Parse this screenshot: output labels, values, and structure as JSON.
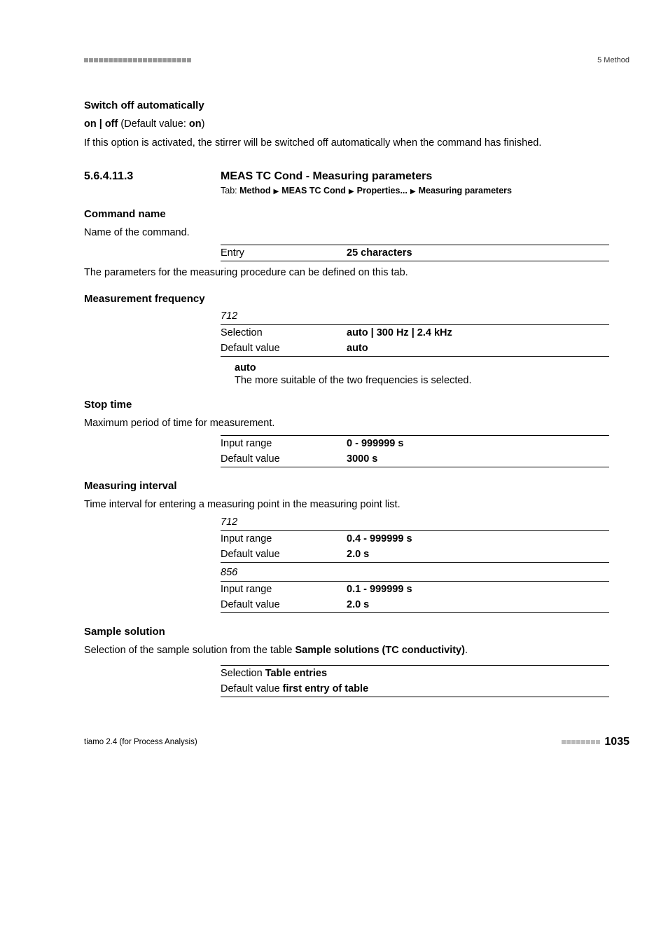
{
  "header": {
    "chapter": "5 Method"
  },
  "blocks": [
    {
      "type": "param-label",
      "text": "Switch off automatically"
    },
    {
      "type": "indent-body",
      "html": "<b>on | off</b> (Default value: <b>on</b>)"
    },
    {
      "type": "indent-body",
      "text": "If this option is activated, the stirrer will be switched off automatically when the command has finished."
    },
    {
      "type": "section",
      "num": "5.6.4.11.3",
      "title": "MEAS TC Cond - Measuring parameters"
    },
    {
      "type": "tab-path",
      "label": "Tab:",
      "crumbs": [
        "Method",
        "MEAS TC Cond",
        "Properties...",
        "Measuring parameters"
      ]
    },
    {
      "type": "param-label",
      "text": "Command name"
    },
    {
      "type": "indent-body",
      "text": "Name of the command."
    },
    {
      "type": "kv-table",
      "rows": [
        {
          "k": "Entry",
          "v": "25 characters",
          "ruleTop": true,
          "ruleBot": true
        }
      ]
    },
    {
      "type": "indent-body",
      "text": "The parameters for the measuring procedure can be defined on this tab."
    },
    {
      "type": "param-label",
      "text": "Measurement frequency"
    },
    {
      "type": "italic",
      "text": "712"
    },
    {
      "type": "kv-table",
      "rows": [
        {
          "k": "Selection",
          "v": "auto | 300 Hz | 2.4 kHz",
          "ruleTop": true
        },
        {
          "k": "Default value",
          "v": "auto",
          "ruleBot": true
        }
      ]
    },
    {
      "type": "sub-term",
      "text": "auto"
    },
    {
      "type": "sub-def",
      "text": "The more suitable of the two frequencies is selected."
    },
    {
      "type": "param-label",
      "text": "Stop time"
    },
    {
      "type": "indent-body",
      "text": "Maximum period of time for measurement."
    },
    {
      "type": "kv-table",
      "rows": [
        {
          "k": "Input range",
          "v": "0 - 999999 s",
          "ruleTop": true
        },
        {
          "k": "Default value",
          "v": "3000 s",
          "ruleBot": true
        }
      ]
    },
    {
      "type": "param-label",
      "text": "Measuring interval"
    },
    {
      "type": "indent-body",
      "text": "Time interval for entering a measuring point in the measuring point list."
    },
    {
      "type": "italic",
      "text": "712"
    },
    {
      "type": "kv-table",
      "rows": [
        {
          "k": "Input range",
          "v": "0.4 - 999999 s",
          "ruleTop": true
        },
        {
          "k": "Default value",
          "v": "2.0 s",
          "ruleBot": true
        }
      ]
    },
    {
      "type": "italic",
      "text": "856"
    },
    {
      "type": "kv-table",
      "rows": [
        {
          "k": "Input range",
          "v": "0.1 - 999999 s",
          "ruleTop": true
        },
        {
          "k": "Default value",
          "v": "2.0 s",
          "ruleBot": true
        }
      ]
    },
    {
      "type": "param-label",
      "text": "Sample solution"
    },
    {
      "type": "indent-body",
      "html": "Selection of the sample solution from the table <b>Sample solutions (TC conductivity)</b>."
    },
    {
      "type": "onecol-table",
      "rows": [
        {
          "html": "Selection <b>Table entries</b>",
          "ruleTop": true
        },
        {
          "html": "Default value <b>first entry of table</b>",
          "ruleBot": true
        }
      ]
    }
  ],
  "footer": {
    "left": "tiamo 2.4 (for Process Analysis)",
    "page": "1035"
  },
  "style": {
    "square_color_top": "#999999",
    "square_color_footer": "#bbbbbb",
    "top_square_count": 22,
    "footer_square_count": 8
  }
}
